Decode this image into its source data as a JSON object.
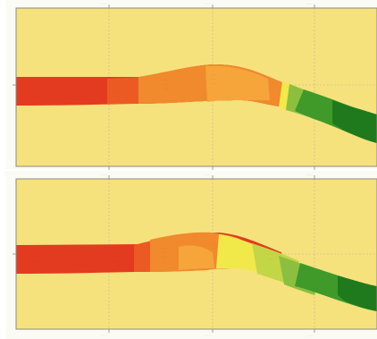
{
  "panels": [
    {
      "id": "top"
    },
    {
      "id": "bottom"
    }
  ],
  "colors": {
    "land": "#f6e27d",
    "frame": "#8a8a84",
    "red": "#e23b20",
    "orange_red": "#ec5a24",
    "orange": "#f08a2c",
    "light_orange": "#f5a53a",
    "yellow": "#f1e94a",
    "yellow_green": "#c3d646",
    "light_green": "#8cbf3f",
    "green": "#3f9a2a",
    "dark_green": "#1f7a1d"
  }
}
